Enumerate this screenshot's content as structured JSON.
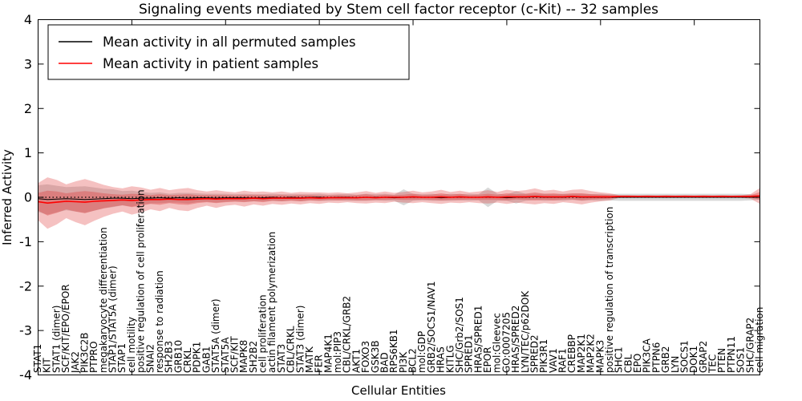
{
  "chart_data": {
    "type": "line",
    "title": "Signaling events mediated by Stem cell factor receptor (c-Kit) -- 32 samples",
    "xlabel": "Cellular Entities",
    "ylabel": "Inferred Activity",
    "ylim": [
      -4,
      4
    ],
    "ytick_labels": [
      "4",
      "3",
      "2",
      "1",
      "0",
      "-1",
      "-2",
      "-3",
      "-4"
    ],
    "ytick_values": [
      4,
      3,
      2,
      1,
      0,
      -1,
      -2,
      -3,
      -4
    ],
    "grid": false,
    "zero_line": {
      "value": 0,
      "style": "dotted",
      "color": "#000000"
    },
    "legend": {
      "position": "upper left",
      "items": [
        {
          "label": "Mean activity in all permuted samples",
          "color": "#000000"
        },
        {
          "label": "Mean activity in patient samples",
          "color": "#ff0000"
        }
      ]
    },
    "categories": [
      "STAT1",
      "KIT",
      "STAT1 (dimer)",
      "SCF/KIT/EPO/EPOR",
      "JAK2",
      "PIK3C2B",
      "PTPRO",
      "megakaryocyte differentiation",
      "STAP1/STAT5A (dimer)",
      "STAP1",
      "cell motility",
      "positive regulation of cell proliferation",
      "SNAI2",
      "response to radiation",
      "SH2B3",
      "GRB10",
      "CRKL",
      "PDPK1",
      "GAB1",
      "STAT5A (dimer)",
      "STAT5A",
      "SCF/KIT",
      "MAPK8",
      "SH2B2",
      "cell proliferation",
      "actin filament polymerization",
      "STAT3",
      "CBL/CRKL",
      "STAT3 (dimer)",
      "MATK",
      "FER",
      "MAP4K1",
      "mol:PIP3",
      "CBL/CRKL/GRB2",
      "AKT1",
      "FOXO3",
      "GSK3B",
      "BAD",
      "RPS6KB1",
      "PI3K",
      "BCL2",
      "mol:GDP",
      "GRB2/SOCS1/NAV1",
      "HRAS",
      "KITLG",
      "SHC/Grb2/SOS1",
      "SPRED1",
      "HRAS/SPRED1",
      "EPOR",
      "mol:Gleevec",
      "GO:0007205",
      "HRAS/SPRED2",
      "LYN/TEC/p62DOK",
      "SPRED2",
      "PIK3R1",
      "VAV1",
      "RAF1",
      "CREBBP",
      "MAP2K1",
      "MAP2K2",
      "MAPK3",
      "positive regulation of transcription",
      "SHC1",
      "CBL",
      "EPO",
      "PIK3CA",
      "PTPN6",
      "GRB2",
      "LYN",
      "SOCS1",
      "DOK1",
      "GRAP2",
      "TEC",
      "PTEN",
      "PTPN11",
      "SOS1",
      "SHC/GRAP2",
      "cell migration"
    ],
    "series": [
      {
        "name": "Mean activity in all permuted samples",
        "color": "#000000",
        "width": 1,
        "values": [
          -0.03,
          -0.05,
          -0.04,
          -0.03,
          -0.04,
          -0.05,
          -0.04,
          -0.03,
          -0.02,
          -0.02,
          -0.03,
          -0.02,
          -0.02,
          -0.01,
          -0.02,
          -0.01,
          -0.02,
          -0.01,
          -0.01,
          -0.02,
          -0.01,
          -0.01,
          -0.01,
          -0.01,
          -0.01,
          0,
          -0.01,
          0,
          -0.01,
          0,
          0,
          -0.01,
          0,
          0,
          -0.01,
          0,
          0,
          0,
          -0.01,
          0,
          0,
          0,
          0,
          -0.01,
          0,
          0,
          0,
          0,
          0,
          0,
          -0.01,
          0,
          0,
          0.01,
          0,
          0,
          0,
          0.01,
          0,
          0,
          0,
          0,
          0,
          0,
          0,
          0,
          0,
          0,
          0,
          0,
          0,
          0,
          0,
          0,
          0,
          0,
          0,
          0
        ]
      },
      {
        "name": "Mean activity in patient samples",
        "color": "#ff0000",
        "width": 1.6,
        "values": [
          -0.1,
          -0.13,
          -0.11,
          -0.09,
          -0.1,
          -0.11,
          -0.09,
          -0.08,
          -0.07,
          -0.06,
          -0.07,
          -0.06,
          -0.05,
          -0.05,
          -0.04,
          -0.05,
          -0.05,
          -0.04,
          -0.03,
          -0.04,
          -0.03,
          -0.03,
          -0.03,
          -0.02,
          -0.03,
          -0.02,
          -0.02,
          -0.02,
          -0.02,
          -0.01,
          -0.02,
          -0.01,
          -0.01,
          -0.01,
          -0.01,
          0,
          -0.01,
          0,
          0,
          0,
          0.01,
          0,
          0,
          0.01,
          0,
          0.01,
          0,
          0,
          0.01,
          0,
          0.01,
          0.01,
          0.01,
          0.02,
          0.01,
          0.01,
          0.01,
          0.02,
          0.01,
          0.01,
          0.01,
          0.01,
          0.02,
          0.02,
          0.02,
          0.02,
          0.02,
          0.02,
          0.02,
          0.02,
          0.02,
          0.02,
          0.02,
          0.02,
          0.02,
          0.02,
          0.02,
          0.03
        ]
      }
    ],
    "bands": [
      {
        "name": "permuted-std-band",
        "color": "#999999",
        "opacity": 0.38,
        "center": 0,
        "half_widths": [
          0.3,
          0.34,
          0.3,
          0.26,
          0.28,
          0.3,
          0.26,
          0.22,
          0.2,
          0.16,
          0.18,
          0.14,
          0.12,
          0.12,
          0.1,
          0.11,
          0.12,
          0.1,
          0.09,
          0.1,
          0.09,
          0.08,
          0.09,
          0.08,
          0.08,
          0.08,
          0.08,
          0.07,
          0.08,
          0.07,
          0.08,
          0.07,
          0.07,
          0.08,
          0.07,
          0.08,
          0.07,
          0.08,
          0.07,
          0.18,
          0.08,
          0.07,
          0.08,
          0.07,
          0.08,
          0.07,
          0.08,
          0.07,
          0.22,
          0.08,
          0.07,
          0.14,
          0.08,
          0.07,
          0.08,
          0.07,
          0.08,
          0.07,
          0.08,
          0.07,
          0.08,
          0.07,
          0.08,
          0.08,
          0.08,
          0.08,
          0.08,
          0.08,
          0.08,
          0.08,
          0.08,
          0.08,
          0.08,
          0.08,
          0.08,
          0.08,
          0.07,
          0.05
        ]
      },
      {
        "name": "patient-band-outer",
        "color": "#dd3333",
        "opacity": 0.3,
        "center": 1,
        "half_widths": [
          0.42,
          0.58,
          0.5,
          0.38,
          0.46,
          0.52,
          0.44,
          0.36,
          0.3,
          0.26,
          0.32,
          0.28,
          0.22,
          0.26,
          0.2,
          0.24,
          0.26,
          0.2,
          0.16,
          0.2,
          0.16,
          0.14,
          0.18,
          0.14,
          0.16,
          0.13,
          0.15,
          0.12,
          0.14,
          0.12,
          0.13,
          0.11,
          0.12,
          0.1,
          0.12,
          0.14,
          0.11,
          0.13,
          0.1,
          0.12,
          0.14,
          0.11,
          0.13,
          0.16,
          0.12,
          0.14,
          0.11,
          0.13,
          0.15,
          0.12,
          0.16,
          0.13,
          0.15,
          0.18,
          0.14,
          0.16,
          0.12,
          0.15,
          0.17,
          0.13,
          0.1,
          0.08,
          0.03,
          0.03,
          0.02,
          0.03,
          0.02,
          0.03,
          0.02,
          0.03,
          0.02,
          0.03,
          0.02,
          0.03,
          0.02,
          0.03,
          0.05,
          0.18
        ]
      },
      {
        "name": "patient-band-inner",
        "color": "#dd3333",
        "opacity": 0.35,
        "center": 1,
        "half_widths": [
          0.2,
          0.28,
          0.24,
          0.18,
          0.22,
          0.25,
          0.21,
          0.17,
          0.14,
          0.12,
          0.15,
          0.13,
          0.1,
          0.12,
          0.09,
          0.11,
          0.12,
          0.09,
          0.08,
          0.09,
          0.08,
          0.07,
          0.08,
          0.07,
          0.08,
          0.06,
          0.07,
          0.06,
          0.07,
          0.06,
          0.06,
          0.05,
          0.06,
          0.05,
          0.06,
          0.07,
          0.05,
          0.06,
          0.05,
          0.06,
          0.07,
          0.05,
          0.06,
          0.08,
          0.06,
          0.07,
          0.05,
          0.06,
          0.07,
          0.06,
          0.08,
          0.06,
          0.07,
          0.09,
          0.07,
          0.08,
          0.06,
          0.07,
          0.08,
          0.06,
          0.05,
          0.04,
          0.015,
          0.015,
          0.01,
          0.015,
          0.01,
          0.015,
          0.01,
          0.015,
          0.01,
          0.015,
          0.01,
          0.015,
          0.01,
          0.015,
          0.025,
          0.09
        ]
      }
    ],
    "xtick_indices": [
      10,
      20,
      30,
      40,
      50,
      60,
      70
    ]
  }
}
